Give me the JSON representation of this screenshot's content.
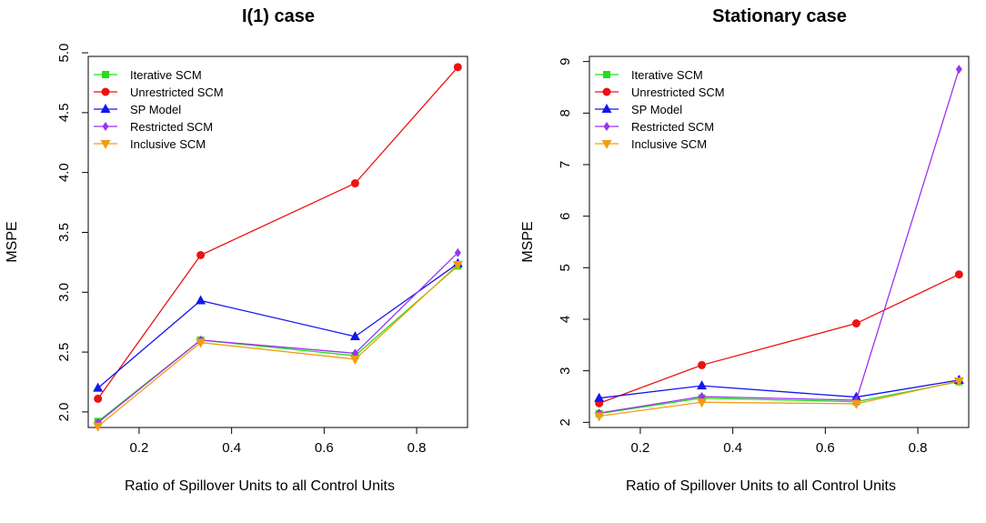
{
  "chart_data": [
    {
      "type": "line",
      "title": "I(1) case",
      "xlabel": "Ratio of Spillover Units to all Control Units",
      "ylabel": "MSPE",
      "x": [
        0.111,
        0.333,
        0.667,
        0.889
      ],
      "xlim": [
        0.09,
        0.91
      ],
      "ylim": [
        1.87,
        4.97
      ],
      "xticks": [
        "0.2",
        "0.4",
        "0.6",
        "0.8"
      ],
      "xtick_values": [
        0.2,
        0.4,
        0.6,
        0.8
      ],
      "yticks": [
        "2.0",
        "2.5",
        "3.0",
        "3.5",
        "4.0",
        "4.5",
        "5.0"
      ],
      "ytick_values": [
        2.0,
        2.5,
        3.0,
        3.5,
        4.0,
        4.5,
        5.0
      ],
      "legend_position": "top-left",
      "series": [
        {
          "name": "Iterative SCM",
          "values": [
            1.92,
            2.6,
            2.47,
            3.22
          ]
        },
        {
          "name": "Unrestricted SCM",
          "values": [
            2.11,
            3.31,
            3.91,
            4.88
          ]
        },
        {
          "name": "SP Model",
          "values": [
            2.2,
            2.93,
            2.63,
            3.24
          ]
        },
        {
          "name": "Restricted SCM",
          "values": [
            1.91,
            2.6,
            2.49,
            3.33
          ]
        },
        {
          "name": "Inclusive SCM",
          "values": [
            1.88,
            2.58,
            2.44,
            3.23
          ]
        }
      ]
    },
    {
      "type": "line",
      "title": "Stationary case",
      "xlabel": "Ratio of Spillover Units to all Control Units",
      "ylabel": "MSPE",
      "x": [
        0.111,
        0.333,
        0.667,
        0.889
      ],
      "xlim": [
        0.09,
        0.91
      ],
      "ylim": [
        1.9,
        9.1
      ],
      "xticks": [
        "0.2",
        "0.4",
        "0.6",
        "0.8"
      ],
      "xtick_values": [
        0.2,
        0.4,
        0.6,
        0.8
      ],
      "yticks": [
        "2",
        "3",
        "4",
        "5",
        "6",
        "7",
        "8",
        "9"
      ],
      "ytick_values": [
        2,
        3,
        4,
        5,
        6,
        7,
        8,
        9
      ],
      "legend_position": "top-left",
      "series": [
        {
          "name": "Iterative SCM",
          "values": [
            2.17,
            2.47,
            2.4,
            2.79
          ]
        },
        {
          "name": "Unrestricted SCM",
          "values": [
            2.37,
            3.11,
            3.92,
            4.87
          ]
        },
        {
          "name": "SP Model",
          "values": [
            2.47,
            2.71,
            2.49,
            2.82
          ]
        },
        {
          "name": "Restricted SCM",
          "values": [
            2.18,
            2.5,
            2.43,
            8.85
          ]
        },
        {
          "name": "Inclusive SCM",
          "values": [
            2.12,
            2.39,
            2.36,
            2.8
          ]
        }
      ]
    }
  ],
  "series_styles": [
    {
      "color": "#22e01e",
      "marker": "square"
    },
    {
      "color": "#ee1111",
      "marker": "circle"
    },
    {
      "color": "#1515ee",
      "marker": "triangle-up"
    },
    {
      "color": "#9933ee",
      "marker": "diamond"
    },
    {
      "color": "#f39c12",
      "marker": "triangle-down"
    }
  ]
}
